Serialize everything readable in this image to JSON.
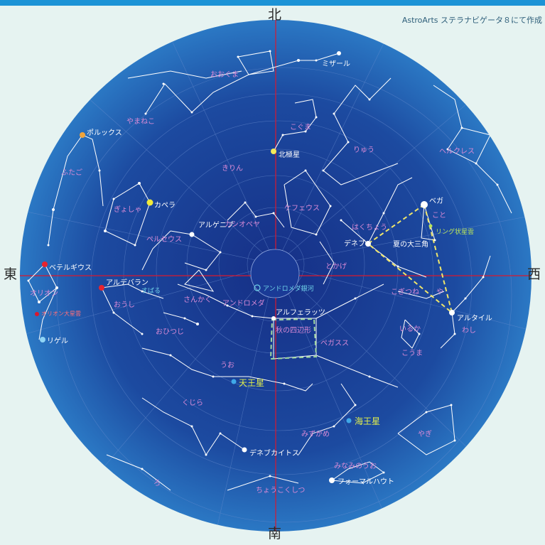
{
  "credit": "AstroArts ステラナビゲータ８にて作成",
  "directions": {
    "north": "北",
    "south": "南",
    "east": "東",
    "west": "西"
  },
  "colors": {
    "background": "#e6f3f1",
    "topbar": "#1c93d6",
    "sky_center": "#162f86",
    "sky_edge": "#2b78c4",
    "meridian": "#d9182f",
    "constellation_line": "#ffffff",
    "label_pink": "#d98ad6",
    "triangle": "#f0e66a",
    "square": "#9fd7a0"
  },
  "stars": [
    {
      "name": "ミザール",
      "color": "white"
    },
    {
      "name": "北極星",
      "color": "yellow"
    },
    {
      "name": "ポルックス",
      "color": "orange"
    },
    {
      "name": "カペラ",
      "color": "yellow"
    },
    {
      "name": "アルゲニブ",
      "color": "white"
    },
    {
      "name": "ベガ",
      "color": "white"
    },
    {
      "name": "デネブ",
      "color": "white"
    },
    {
      "name": "アルタイル",
      "color": "white"
    },
    {
      "name": "ベテルギウス",
      "color": "red"
    },
    {
      "name": "アルデバラン",
      "color": "red"
    },
    {
      "name": "リゲル",
      "color": "blue"
    },
    {
      "name": "アルフェラッツ",
      "color": "white"
    },
    {
      "name": "デネブカイトス",
      "color": "white"
    },
    {
      "name": "フォーマルハウト",
      "color": "white"
    }
  ],
  "planets": [
    {
      "name": "天王星"
    },
    {
      "name": "海王星"
    }
  ],
  "constellations": [
    "おおぐま",
    "やまねこ",
    "こぐま",
    "りゅう",
    "ヘルクレス",
    "ふたご",
    "きりん",
    "ぎょしゃ",
    "ケフェウス",
    "カシオペヤ",
    "ペルセウス",
    "はくちょう",
    "こと",
    "とかげ",
    "や",
    "こぎつね",
    "オリオン",
    "おうし",
    "さんかく",
    "アンドロメダ",
    "いるか",
    "おひつじ",
    "ペガスス",
    "わし",
    "こうま",
    "うお",
    "くじら",
    "みずがめ",
    "やぎ",
    "みなみのうお",
    "ろ",
    "ちょうこくしつ"
  ],
  "objects": {
    "subaru": "すばる",
    "ring_nebula": "リング状星雲",
    "andromeda_galaxy": "アンドロメダ銀河",
    "orion_nebula": "オリオン大星雲"
  },
  "asterisms": {
    "summer_triangle": "夏の大三角",
    "autumn_square": "秋の四辺形"
  }
}
